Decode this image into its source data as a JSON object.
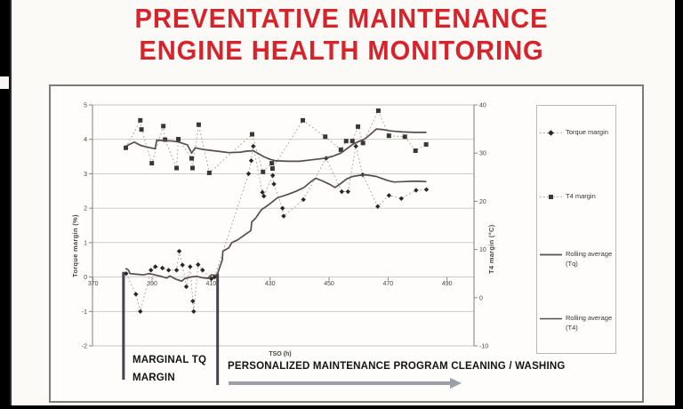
{
  "title": {
    "line1": "PREVENTATIVE MAINTENANCE",
    "line2": "ENGINE HEALTH MONITORING",
    "color": "#d5242b"
  },
  "annotations": {
    "marginal_line1": "MARGINAL TQ",
    "marginal_line2": "MARGIN",
    "program_label": "PERSONALIZED MAINTENANCE PROGRAM CLEANING / WASHING",
    "program_arrow": "right-arrow"
  },
  "legend": {
    "items": [
      {
        "label": "Torque margin",
        "style": "dotted",
        "marker": "diamond"
      },
      {
        "label": "T4 margin",
        "style": "dotted",
        "marker": "square"
      },
      {
        "label": "Rolling average (Tq)",
        "style": "solid",
        "marker": "none"
      },
      {
        "label": "Rolling average (T4)",
        "style": "solid",
        "marker": "none"
      }
    ]
  },
  "colors": {
    "title_red": "#d5242b",
    "grid": "#c9c3bc",
    "axis": "#8d8680",
    "tick_text": "#4a443f",
    "dotted_line": "#a39d97",
    "diamond_marker": "#2b2725",
    "square_marker": "#3b3734",
    "rolling_line": "#594c4e",
    "marker_bar": "#4a4150",
    "arrow_gray": "#9aa0a5"
  },
  "chart_data": {
    "type": "line",
    "title": "",
    "xlabel": "TSO (h)",
    "ylabel_left": "Torque margin (%)",
    "ylabel_right": "T4 margin (°C)",
    "xlim": [
      369.8,
      499
    ],
    "x_ticks": [
      370,
      390,
      410,
      430,
      450,
      470,
      490
    ],
    "ylim_left": [
      -2,
      5
    ],
    "y_left_ticks": [
      5,
      4,
      3,
      2,
      1,
      0,
      -1,
      -2
    ],
    "ylim_right": [
      -10,
      40
    ],
    "y_right_ticks": [
      40,
      30,
      20,
      10,
      0,
      -10
    ],
    "grid": true,
    "legend_position": "right",
    "series": [
      {
        "name": "Torque margin",
        "axis": "left",
        "unit": "%",
        "style": "dotted",
        "marker": "diamond",
        "points": [
          [
            381.2,
            0.1
          ],
          [
            384.5,
            -0.5
          ],
          [
            386,
            -1.0
          ],
          [
            389.6,
            0.2
          ],
          [
            391.1,
            0.3
          ],
          [
            393.5,
            0.26
          ],
          [
            395.6,
            0.2
          ],
          [
            398.3,
            0.2
          ],
          [
            399.2,
            0.75
          ],
          [
            400.3,
            0.35
          ],
          [
            401.6,
            -0.28
          ],
          [
            402.9,
            0.3
          ],
          [
            403.8,
            -0.7
          ],
          [
            404.1,
            -1.0
          ],
          [
            405.6,
            0.36
          ],
          [
            407.1,
            0.2
          ],
          [
            410.1,
            -0.05
          ],
          [
            411.2,
            0.0
          ],
          [
            422.7,
            3.0
          ],
          [
            423.6,
            3.38
          ],
          [
            424.3,
            3.8
          ],
          [
            427.4,
            2.46
          ],
          [
            427.9,
            2.35
          ],
          [
            430.9,
            2.95
          ],
          [
            431.3,
            2.7
          ],
          [
            434.2,
            2.0
          ],
          [
            434.6,
            1.77
          ],
          [
            441.3,
            2.25
          ],
          [
            449,
            3.45
          ],
          [
            454.3,
            2.48
          ],
          [
            456.4,
            2.48
          ],
          [
            459.1,
            3.8
          ],
          [
            461.4,
            2.97
          ],
          [
            466.5,
            2.05
          ],
          [
            470.3,
            2.37
          ],
          [
            474.5,
            2.28
          ],
          [
            479.5,
            2.52
          ],
          [
            483,
            2.54
          ]
        ]
      },
      {
        "name": "T4 margin",
        "axis": "right",
        "unit": "°C",
        "style": "dotted",
        "marker": "square",
        "points": [
          [
            381.1,
            31.1
          ],
          [
            386,
            36.8
          ],
          [
            386.4,
            34.9
          ],
          [
            389.9,
            27.9
          ],
          [
            393.8,
            35.6
          ],
          [
            394.4,
            32.8
          ],
          [
            398.3,
            26.9
          ],
          [
            398.9,
            32.9
          ],
          [
            403.4,
            28.9
          ],
          [
            403.7,
            26.9
          ],
          [
            405.8,
            35.9
          ],
          [
            409.4,
            25.9
          ],
          [
            423.9,
            33.9
          ],
          [
            427.6,
            26.1
          ],
          [
            430.6,
            27.9
          ],
          [
            430.8,
            26.8
          ],
          [
            441.1,
            36.8
          ],
          [
            448.7,
            33.4
          ],
          [
            454,
            30.7
          ],
          [
            455.8,
            32.5
          ],
          [
            457.9,
            32.5
          ],
          [
            459.8,
            35.5
          ],
          [
            461.5,
            32.1
          ],
          [
            466.7,
            38.8
          ],
          [
            470.3,
            33.6
          ],
          [
            475.7,
            33.4
          ],
          [
            479.3,
            30.5
          ],
          [
            482.9,
            31.8
          ]
        ]
      },
      {
        "name": "Rolling average (Tq)",
        "axis": "left",
        "unit": "%",
        "style": "solid",
        "marker": "none",
        "points": [
          [
            381,
            0.25
          ],
          [
            382,
            0.2
          ],
          [
            382.5,
            0.1
          ],
          [
            385,
            0.08
          ],
          [
            387,
            0.06
          ],
          [
            389,
            0.1
          ],
          [
            391,
            0.06
          ],
          [
            393,
            0.02
          ],
          [
            395,
            -0.03
          ],
          [
            396,
            0.03
          ],
          [
            398,
            -0.06
          ],
          [
            400,
            -0.12
          ],
          [
            401,
            -0.05
          ],
          [
            403,
            0.0
          ],
          [
            405,
            0.02
          ],
          [
            407,
            -0.02
          ],
          [
            409,
            -0.04
          ],
          [
            410,
            0.06
          ],
          [
            412,
            0.05
          ],
          [
            413,
            0.3
          ],
          [
            413.8,
            0.5
          ],
          [
            414,
            0.75
          ],
          [
            416,
            0.85
          ],
          [
            417,
            1.0
          ],
          [
            419,
            1.08
          ],
          [
            421,
            1.2
          ],
          [
            423.5,
            1.35
          ],
          [
            423.8,
            1.6
          ],
          [
            425,
            1.7
          ],
          [
            427,
            1.95
          ],
          [
            429.5,
            2.1
          ],
          [
            432.5,
            2.3
          ],
          [
            436,
            2.4
          ],
          [
            439,
            2.5
          ],
          [
            441.5,
            2.6
          ],
          [
            444,
            2.78
          ],
          [
            445.5,
            2.87
          ],
          [
            448,
            2.78
          ],
          [
            450.5,
            2.68
          ],
          [
            452,
            2.6
          ],
          [
            454,
            2.72
          ],
          [
            456,
            2.85
          ],
          [
            458,
            2.92
          ],
          [
            460,
            2.95
          ],
          [
            462,
            2.97
          ],
          [
            464,
            2.95
          ],
          [
            466,
            2.92
          ],
          [
            468,
            2.86
          ],
          [
            470,
            2.8
          ],
          [
            472,
            2.76
          ],
          [
            475,
            2.77
          ],
          [
            478,
            2.78
          ],
          [
            481,
            2.78
          ],
          [
            483,
            2.77
          ]
        ]
      },
      {
        "name": "Rolling average (T4)",
        "axis": "right",
        "unit": "°C",
        "style": "solid",
        "marker": "none",
        "points": [
          [
            381,
            31.4
          ],
          [
            384,
            32.3
          ],
          [
            386,
            31.6
          ],
          [
            388,
            31.3
          ],
          [
            391,
            30.9
          ],
          [
            391.6,
            32.7
          ],
          [
            394,
            32.6
          ],
          [
            397,
            32.5
          ],
          [
            399,
            32.3
          ],
          [
            402,
            31.7
          ],
          [
            403.4,
            30.0
          ],
          [
            404.6,
            31.1
          ],
          [
            406,
            30.9
          ],
          [
            408,
            30.7
          ],
          [
            412,
            30.4
          ],
          [
            416,
            30.1
          ],
          [
            420,
            30.2
          ],
          [
            422,
            30.4
          ],
          [
            424.3,
            30.5
          ],
          [
            426,
            29.9
          ],
          [
            428,
            29.2
          ],
          [
            430,
            28.7
          ],
          [
            432,
            28.4
          ],
          [
            436,
            28.3
          ],
          [
            440,
            28.3
          ],
          [
            444,
            28.6
          ],
          [
            448,
            28.9
          ],
          [
            451,
            29.3
          ],
          [
            454,
            30.0
          ],
          [
            456,
            30.9
          ],
          [
            458,
            31.8
          ],
          [
            460,
            32.4
          ],
          [
            462,
            32.9
          ],
          [
            464,
            33.9
          ],
          [
            466,
            35.0
          ],
          [
            468,
            34.9
          ],
          [
            471,
            34.6
          ],
          [
            475,
            34.4
          ],
          [
            479,
            34.3
          ],
          [
            483,
            34.3
          ]
        ]
      }
    ],
    "marginal_zone_bars": [
      {
        "x": 380.3,
        "top_value_pct": 0.15
      },
      {
        "x": 412.2,
        "top_value_pct": 0.1
      }
    ]
  }
}
